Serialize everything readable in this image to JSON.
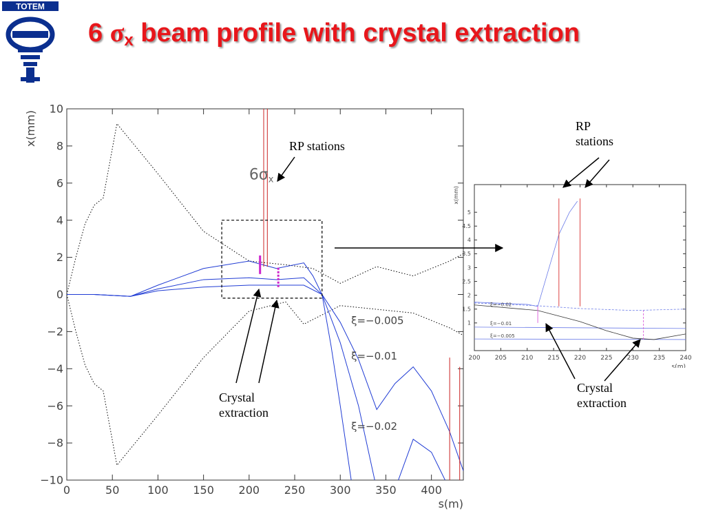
{
  "slide": {
    "title_prefix": "6 ",
    "title_symbol": "σ",
    "title_sub": "x",
    "title_rest": " beam profile with crystal extraction",
    "logo_text": "TOTEM",
    "brand_color": "#0b2f8f",
    "title_color": "#e8161b"
  },
  "annotations": {
    "rp_main": "RP stations",
    "rp_inset_1": "RP",
    "rp_inset_2": "stations",
    "crystal_main_1": "Crystal",
    "crystal_main_2": "extraction",
    "crystal_inset_1": "Crystal",
    "crystal_inset_2": "extraction"
  },
  "chart_data": [
    {
      "type": "line",
      "xlabel": "s(m)",
      "ylabel": "x(mm)",
      "xlim": [
        0,
        435
      ],
      "ylim": [
        -10,
        10
      ],
      "x_ticks": [
        0,
        50,
        100,
        150,
        200,
        250,
        300,
        350,
        400
      ],
      "y_ticks": [
        10,
        8,
        6,
        4,
        2,
        0,
        -2,
        -4,
        -6,
        -8,
        -10
      ],
      "y_tick_labels": [
        "10",
        "8",
        "6",
        "4",
        "2",
        "0",
        "−2",
        "−4",
        "−6",
        "−8",
        "−10"
      ],
      "envelope_label": {
        "text": "6σ",
        "sub": "x",
        "x": 200,
        "y": 6.2
      },
      "series": [
        {
          "name": "6σx upper",
          "style": "dotted",
          "color": "#000000",
          "x": [
            0,
            10,
            20,
            30,
            40,
            55,
            100,
            150,
            200,
            240,
            270,
            300,
            340,
            380,
            420,
            435
          ],
          "y": [
            0,
            2,
            3.8,
            4.8,
            5.2,
            9.2,
            6.5,
            3.4,
            1.8,
            1.6,
            1.4,
            0.6,
            1.5,
            1.0,
            1.8,
            2.2
          ]
        },
        {
          "name": "6σx lower",
          "style": "dotted",
          "color": "#000000",
          "x": [
            0,
            10,
            20,
            30,
            40,
            55,
            100,
            150,
            200,
            240,
            260,
            300,
            340,
            380,
            420,
            435
          ],
          "y": [
            0,
            -2,
            -3.8,
            -4.8,
            -5.2,
            -9.2,
            -6.5,
            -3.4,
            -0.9,
            -0.4,
            -1.6,
            -0.6,
            -0.8,
            -1.0,
            -1.8,
            -2.2
          ]
        },
        {
          "name": "ξ=−0.005",
          "label_at": [
            312,
            -1.6
          ],
          "color": "#1f3bd4",
          "x": [
            0,
            30,
            70,
            100,
            150,
            200,
            230,
            260,
            280,
            300,
            320,
            340,
            360,
            380,
            400,
            420,
            435
          ],
          "y": [
            0,
            0,
            -0.1,
            0.2,
            0.4,
            0.5,
            0.5,
            0.5,
            0,
            -1.5,
            -3.5,
            -6.2,
            -4.8,
            -3.9,
            -5.2,
            -7.4,
            -9.5
          ]
        },
        {
          "name": "ξ=−0.01",
          "label_at": [
            312,
            -3.5
          ],
          "color": "#1f3bd4",
          "x": [
            0,
            30,
            70,
            100,
            150,
            200,
            230,
            260,
            280,
            300,
            320,
            340,
            360,
            380,
            400,
            420,
            435
          ],
          "y": [
            0,
            0,
            -0.1,
            0.3,
            0.8,
            0.9,
            0.8,
            0.9,
            0,
            -2.6,
            -6,
            -10.5,
            -10.5,
            -7.8,
            -8.5,
            -10.5,
            -10.5
          ]
        },
        {
          "name": "ξ=−0.02",
          "label_at": [
            312,
            -7.3
          ],
          "color": "#1f3bd4",
          "x": [
            0,
            30,
            70,
            100,
            150,
            200,
            230,
            260,
            270,
            280,
            290,
            300,
            312
          ],
          "y": [
            0,
            0,
            -0.1,
            0.5,
            1.4,
            1.8,
            1.4,
            1.7,
            1.0,
            0,
            -2.8,
            -6,
            -10
          ]
        }
      ],
      "rp_lines": [
        {
          "x": 216,
          "y": [
            1.5,
            10
          ],
          "color": "#cc2222"
        },
        {
          "x": 220,
          "y": [
            1.5,
            10
          ],
          "color": "#cc2222"
        },
        {
          "x": 420,
          "y": [
            -10,
            -3.4
          ],
          "color": "#cc2222"
        },
        {
          "x": 431,
          "y": [
            -10,
            -3.9
          ],
          "color": "#cc2222"
        }
      ],
      "crystal_marks": [
        {
          "x": 212,
          "y": [
            1.1,
            2.1
          ],
          "style": "solid",
          "color": "#cc22cc"
        },
        {
          "x": 232,
          "y": [
            0.4,
            1.5
          ],
          "style": "dashed",
          "color": "#cc22cc"
        }
      ],
      "zoom_box": {
        "x": [
          170,
          280
        ],
        "y": [
          -0.2,
          4
        ]
      }
    },
    {
      "type": "line",
      "xlabel": "s(m)",
      "ylabel": "x(mm)",
      "xlim": [
        200,
        240
      ],
      "ylim": [
        0,
        6
      ],
      "x_ticks": [
        200,
        205,
        210,
        215,
        220,
        225,
        230,
        235,
        240
      ],
      "y_ticks": [
        1,
        1.5,
        2,
        2.5,
        3,
        3.5,
        4,
        4.5,
        5
      ],
      "series": [
        {
          "name": "ξ=−0.02",
          "label_at": [
            203,
            1.6
          ],
          "color": "#6a7be8",
          "x": [
            200,
            210,
            212,
            214,
            216,
            218,
            219.5
          ],
          "y": [
            1.75,
            1.67,
            1.6,
            2.9,
            4.2,
            5.0,
            5.4
          ]
        },
        {
          "name": "6σx",
          "style": "dashed",
          "color": "#6a7be8",
          "x": [
            200,
            212,
            220,
            230,
            240
          ],
          "y": [
            1.72,
            1.62,
            1.52,
            1.45,
            1.5
          ]
        },
        {
          "name": "ξ=−0.01",
          "label_at": [
            203,
            0.92
          ],
          "color": "#6a7be8",
          "x": [
            200,
            240
          ],
          "y": [
            0.85,
            0.8
          ]
        },
        {
          "name": "ξ=−0.005",
          "label_at": [
            203,
            0.47
          ],
          "color": "#6a7be8",
          "x": [
            200,
            240
          ],
          "y": [
            0.42,
            0.4
          ]
        },
        {
          "name": "crystal",
          "color": "#333333",
          "x": [
            200,
            212,
            220,
            225,
            230,
            234,
            240
          ],
          "y": [
            1.65,
            1.45,
            1.05,
            0.72,
            0.45,
            0.4,
            0.6
          ]
        }
      ],
      "rp_lines": [
        {
          "x": 216,
          "y": [
            1.6,
            5.5
          ],
          "color": "#dd4444"
        },
        {
          "x": 220,
          "y": [
            1.6,
            5.5
          ],
          "color": "#dd4444"
        }
      ],
      "crystal_marks": [
        {
          "x": 212,
          "y": [
            1.0,
            1.6
          ],
          "style": "solid",
          "color": "#dd66dd"
        },
        {
          "x": 232,
          "y": [
            0.4,
            1.45
          ],
          "style": "dashed",
          "color": "#dd66dd"
        }
      ]
    }
  ]
}
